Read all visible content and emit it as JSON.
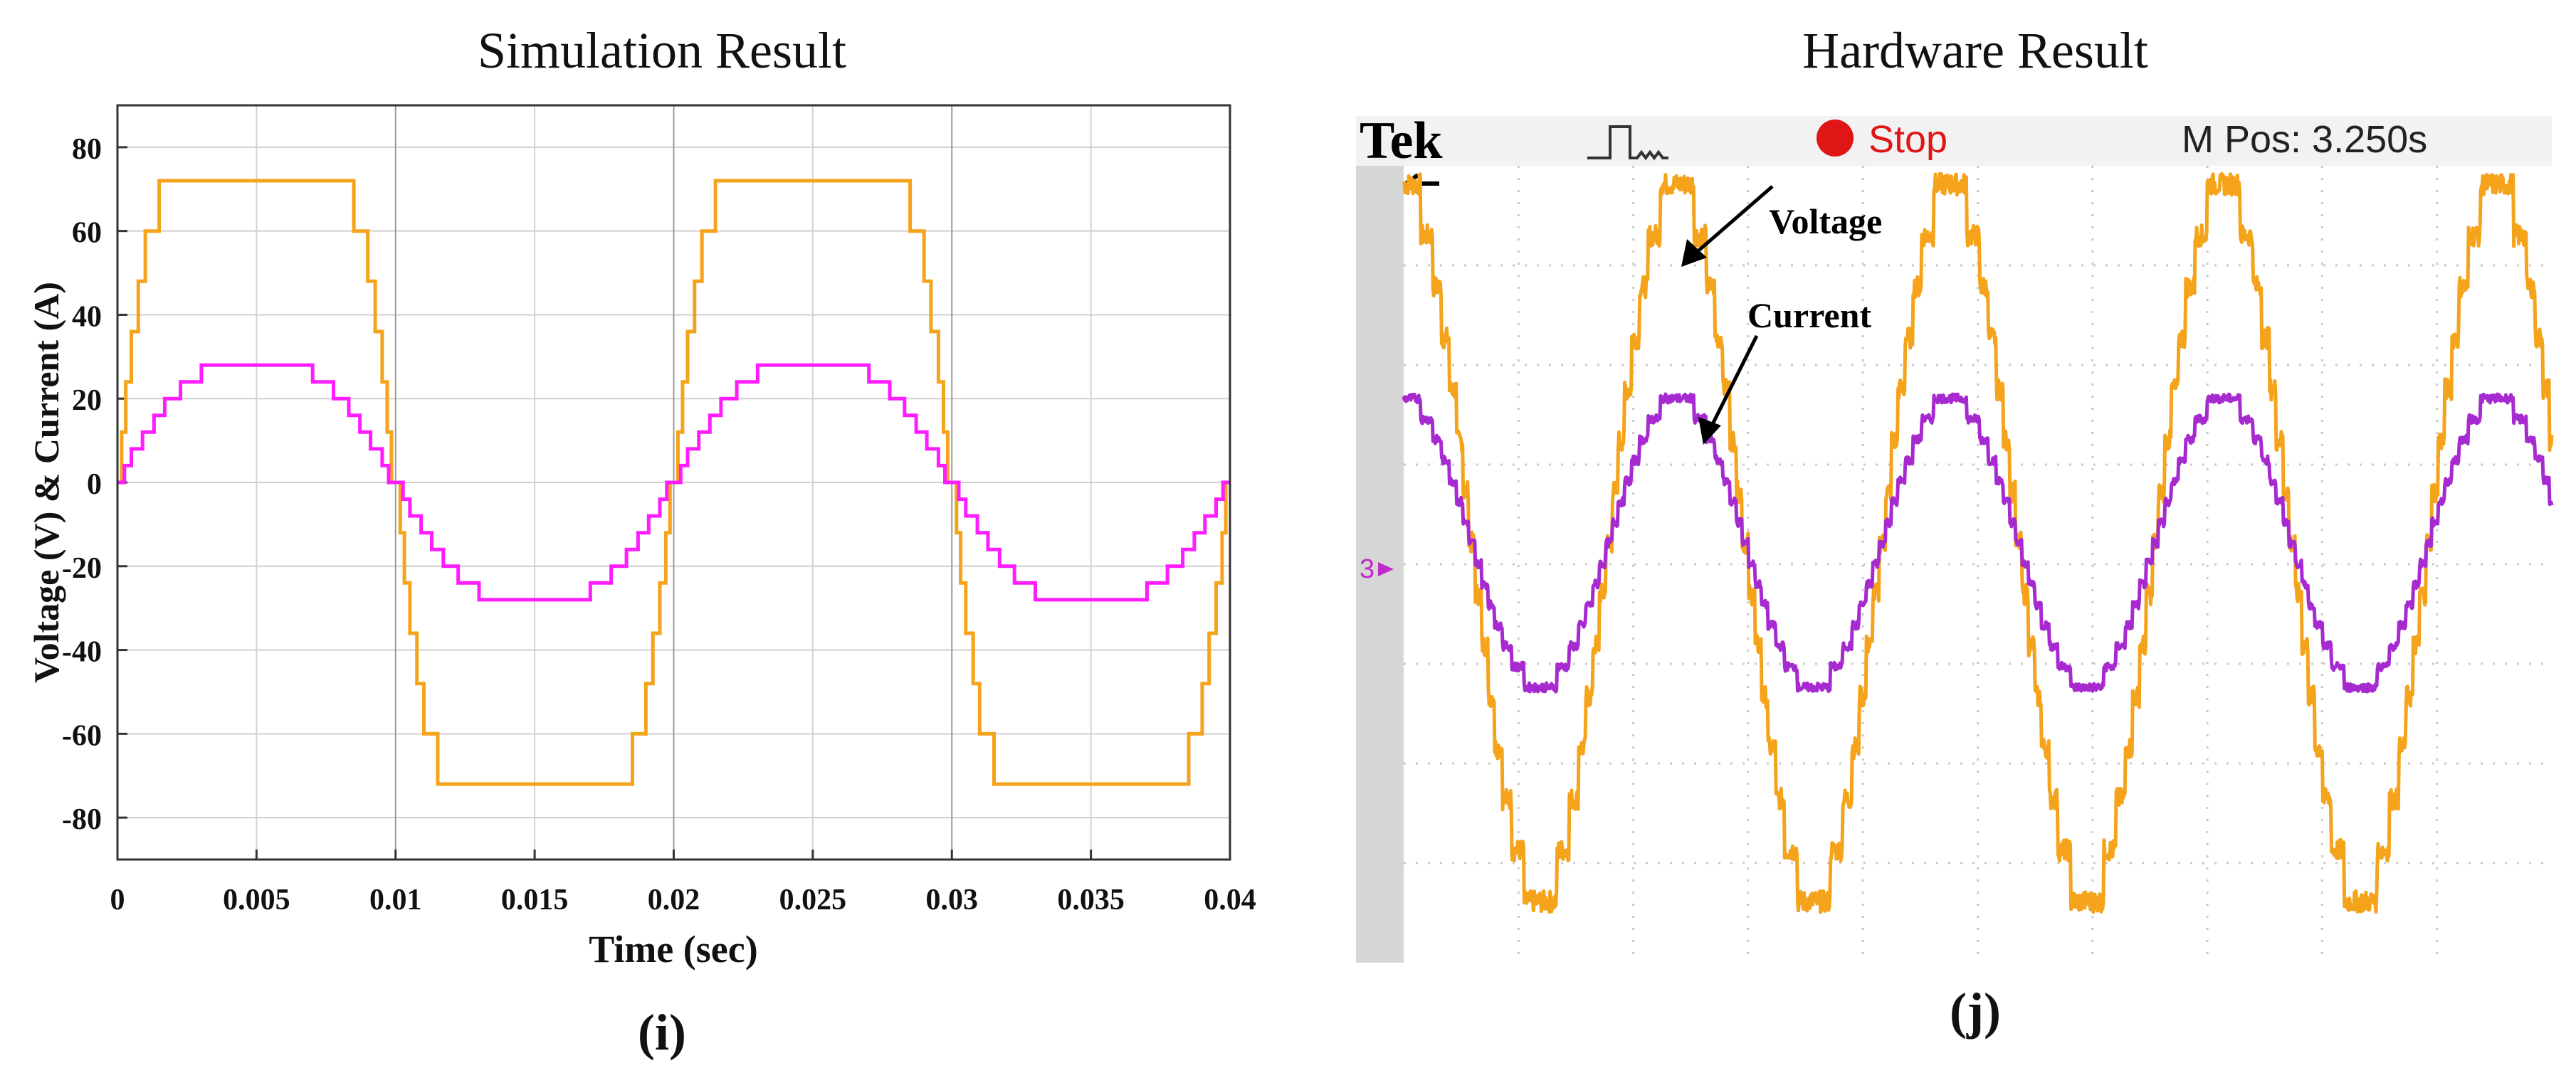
{
  "colors": {
    "voltage": "#f5a31a",
    "current_sim": "#ff1cff",
    "current_hw": "#a62ad0",
    "scope_bg": "#ffffff",
    "scope_frame": "#c8c8c8",
    "stop_red": "#e01515"
  },
  "left_panel": {
    "title": "Simulation Result",
    "caption": "(i)"
  },
  "right_panel": {
    "title": "Hardware Result",
    "caption": "(j)",
    "scope": {
      "brand": "Tek",
      "trigger_icon": "pulse-icon",
      "state_label": "Stop",
      "mpos_label": "M Pos: 3.250s",
      "channel_marker": "3",
      "annotations": [
        "Voltage",
        "Current"
      ]
    }
  },
  "chart_data": [
    {
      "type": "line",
      "title": "Simulation Result",
      "xlabel": "Time (sec)",
      "ylabel": "Voltage (V) & Current (A)",
      "xlim": [
        0,
        0.04
      ],
      "ylim": [
        -90,
        90
      ],
      "xticks": [
        0,
        0.005,
        0.01,
        0.015,
        0.02,
        0.025,
        0.03,
        0.035,
        0.04
      ],
      "xtick_labels": [
        "0",
        "0.005",
        "0.01",
        "0.015",
        "0.02",
        "0.025",
        "0.03",
        "0.035",
        "0.04"
      ],
      "yticks": [
        80,
        60,
        40,
        20,
        0,
        -20,
        -40,
        -60,
        -80
      ],
      "ytick_labels": [
        "80",
        "60",
        "40",
        "20",
        "0",
        "-20",
        "-40",
        "-60",
        "-80"
      ],
      "grid": true,
      "frequency_hz": 50,
      "series": [
        {
          "id": "voltage",
          "color": "#f5a31a",
          "amplitude": 72,
          "step_levels": [
            0,
            12,
            24,
            36,
            48,
            60,
            72
          ],
          "step_onset_fraction": [
            0,
            0.03,
            0.06,
            0.1,
            0.15,
            0.2,
            0.3
          ]
        },
        {
          "id": "current",
          "color": "#ff1cff",
          "amplitude": 28,
          "step_levels": [
            0,
            4,
            8,
            12,
            16,
            20,
            24,
            28
          ],
          "step_onset_fraction": [
            0,
            0.05,
            0.1,
            0.18,
            0.26,
            0.34,
            0.45,
            0.6
          ]
        }
      ]
    },
    {
      "type": "line",
      "title": "Hardware Result",
      "xlabel": "",
      "ylabel": "",
      "grid": true,
      "grid_divisions": {
        "x": 10,
        "y": 8
      },
      "cycles_shown": 4.2,
      "series": [
        {
          "name": "Voltage",
          "color": "#f5a31a",
          "amplitude_div": 3.6,
          "levels": 7
        },
        {
          "name": "Current",
          "color": "#a62ad0",
          "amplitude_div": 1.45,
          "levels": 7
        }
      ]
    }
  ]
}
